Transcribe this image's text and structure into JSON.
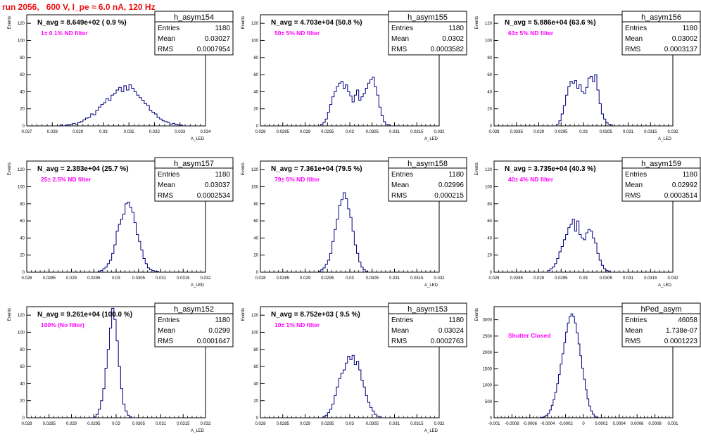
{
  "run_title": "run 2056,   600 V, I_pe ≈ 6.0 nA, 120 Hz",
  "colors": {
    "title": "#ee1111",
    "annotation": "#ff00ff",
    "histogram": "#000080"
  },
  "chart_data": [
    {
      "type": "bar",
      "name": "h_asym154",
      "stats": {
        "entries_label": "Entries",
        "entries": "1180",
        "mean_label": "Mean",
        "mean": "0.03027",
        "rms_label": "RMS",
        "rms": "0.0007954"
      },
      "navg": "N_avg = 8.649e+02 ( 0.9 %)",
      "annotation": "1± 0.1% ND filter",
      "ylabel": "Events",
      "xlabel": "A_LED",
      "xlim": [
        0.027,
        0.034
      ],
      "ylim": [
        0,
        130
      ],
      "xticks": [
        0.027,
        0.028,
        0.029,
        0.03,
        0.031,
        0.032,
        0.033,
        0.034
      ],
      "xtick_labels": [
        "0.027",
        "0.028",
        "0.029",
        "0.03",
        "0.031",
        "0.032",
        "0.033",
        "0.034"
      ],
      "yticks": [
        0,
        20,
        40,
        60,
        80,
        100,
        120
      ],
      "ytick_labels": [
        "0",
        "20",
        "40",
        "60",
        "80",
        "100",
        "120"
      ],
      "bin_start": 0.0283,
      "bin_width": 0.0001,
      "values": [
        1,
        0,
        1,
        1,
        2,
        3,
        2,
        4,
        5,
        7,
        9,
        10,
        14,
        13,
        18,
        22,
        25,
        27,
        32,
        30,
        36,
        38,
        42,
        45,
        40,
        47,
        42,
        48,
        44,
        40,
        36,
        33,
        30,
        26,
        24,
        18,
        16,
        14,
        10,
        8,
        6,
        5,
        4,
        2,
        3,
        2,
        1,
        1
      ]
    },
    {
      "type": "bar",
      "name": "h_asym155",
      "stats": {
        "entries_label": "Entries",
        "entries": "1180",
        "mean_label": "Mean",
        "mean": "0.0302",
        "rms_label": "RMS",
        "rms": "0.0003582"
      },
      "navg": "N_avg = 4.703e+04 (50.8 %)",
      "annotation": "50± 5% ND filter",
      "ylabel": "Events",
      "xlabel": "A_LED",
      "xlim": [
        0.028,
        0.032
      ],
      "ylim": [
        0,
        130
      ],
      "xticks": [
        0.028,
        0.0285,
        0.029,
        0.0295,
        0.03,
        0.0305,
        0.031,
        0.0315,
        0.032
      ],
      "xtick_labels": [
        "0.028",
        "0.0285",
        "0.029",
        "0.0295",
        "0.03",
        "0.0305",
        "0.031",
        "0.0315",
        "0.032"
      ],
      "yticks": [
        0,
        20,
        40,
        60,
        80,
        100,
        120
      ],
      "ytick_labels": [
        "0",
        "20",
        "40",
        "60",
        "80",
        "100",
        "120"
      ],
      "bin_start": 0.02935,
      "bin_width": 5e-05,
      "values": [
        2,
        4,
        8,
        16,
        25,
        34,
        40,
        46,
        50,
        52,
        44,
        48,
        40,
        35,
        28,
        36,
        42,
        30,
        34,
        38,
        44,
        50,
        54,
        57,
        46,
        36,
        22,
        12,
        5,
        2,
        1
      ]
    },
    {
      "type": "bar",
      "name": "h_asym156",
      "stats": {
        "entries_label": "Entries",
        "entries": "1180",
        "mean_label": "Mean",
        "mean": "0.03002",
        "rms_label": "RMS",
        "rms": "0.0003137"
      },
      "navg": "N_avg = 5.886e+04 (63.6 %)",
      "annotation": "63± 5% ND filter",
      "ylabel": "Events",
      "xlabel": "A_LED",
      "xlim": [
        0.028,
        0.032
      ],
      "ylim": [
        0,
        130
      ],
      "xticks": [
        0.028,
        0.0285,
        0.029,
        0.0295,
        0.03,
        0.0305,
        0.031,
        0.0315,
        0.032
      ],
      "xtick_labels": [
        "0.028",
        "0.0285",
        "0.029",
        "0.0295",
        "0.03",
        "0.0305",
        "0.031",
        "0.0315",
        "0.032"
      ],
      "yticks": [
        0,
        20,
        40,
        60,
        80,
        100,
        120
      ],
      "ytick_labels": [
        "0",
        "20",
        "40",
        "60",
        "80",
        "100",
        "120"
      ],
      "bin_start": 0.0294,
      "bin_width": 5e-05,
      "values": [
        2,
        6,
        14,
        24,
        36,
        46,
        52,
        50,
        53,
        44,
        48,
        40,
        38,
        45,
        56,
        58,
        52,
        60,
        42,
        26,
        14,
        8,
        4,
        2,
        1
      ]
    },
    {
      "type": "bar",
      "name": "h_asym157",
      "stats": {
        "entries_label": "Entries",
        "entries": "1180",
        "mean_label": "Mean",
        "mean": "0.03037",
        "rms_label": "RMS",
        "rms": "0.0002534"
      },
      "navg": "N_avg = 2.383e+04 (25.7 %)",
      "annotation": "25± 2.5% ND filter",
      "ylabel": "Events",
      "xlabel": "A_LED",
      "xlim": [
        0.028,
        0.032
      ],
      "ylim": [
        0,
        130
      ],
      "xticks": [
        0.028,
        0.0285,
        0.029,
        0.0295,
        0.03,
        0.0305,
        0.031,
        0.0315,
        0.032
      ],
      "xtick_labels": [
        "0.028",
        "0.0285",
        "0.029",
        "0.0295",
        "0.03",
        "0.0305",
        "0.031",
        "0.0315",
        "0.032"
      ],
      "yticks": [
        0,
        20,
        40,
        60,
        80,
        100,
        120
      ],
      "ytick_labels": [
        "0",
        "20",
        "40",
        "60",
        "80",
        "100",
        "120"
      ],
      "bin_start": 0.0296,
      "bin_width": 5e-05,
      "values": [
        1,
        2,
        4,
        6,
        10,
        14,
        22,
        32,
        48,
        56,
        62,
        68,
        80,
        82,
        76,
        70,
        58,
        44,
        36,
        26,
        16,
        10,
        5,
        3,
        2,
        1,
        1
      ]
    },
    {
      "type": "bar",
      "name": "h_asym158",
      "stats": {
        "entries_label": "Entries",
        "entries": "1180",
        "mean_label": "Mean",
        "mean": "0.02996",
        "rms_label": "RMS",
        "rms": "0.000215"
      },
      "navg": "N_avg = 7.361e+04 (79.5 %)",
      "annotation": "79± 5% ND filter",
      "ylabel": "Events",
      "xlabel": "A_LED",
      "xlim": [
        0.028,
        0.032
      ],
      "ylim": [
        0,
        130
      ],
      "xticks": [
        0.028,
        0.0285,
        0.029,
        0.0295,
        0.03,
        0.0305,
        0.031,
        0.0315,
        0.032
      ],
      "xtick_labels": [
        "0.028",
        "0.0285",
        "0.029",
        "0.0295",
        "0.03",
        "0.0305",
        "0.031",
        "0.0315",
        "0.032"
      ],
      "yticks": [
        0,
        20,
        40,
        60,
        80,
        100,
        120
      ],
      "ytick_labels": [
        "0",
        "20",
        "40",
        "60",
        "80",
        "100",
        "120"
      ],
      "bin_start": 0.0293,
      "bin_width": 5e-05,
      "values": [
        1,
        3,
        5,
        9,
        14,
        22,
        36,
        50,
        62,
        78,
        85,
        93,
        86,
        74,
        64,
        48,
        32,
        22,
        12,
        6,
        3,
        1
      ]
    },
    {
      "type": "bar",
      "name": "h_asym159",
      "stats": {
        "entries_label": "Entries",
        "entries": "1180",
        "mean_label": "Mean",
        "mean": "0.02992",
        "rms_label": "RMS",
        "rms": "0.0003514"
      },
      "navg": "N_avg = 3.735e+04 (40.3 %)",
      "annotation": "40± 4% ND filter",
      "ylabel": "Events",
      "xlabel": "A_LED",
      "xlim": [
        0.028,
        0.032
      ],
      "ylim": [
        0,
        130
      ],
      "xticks": [
        0.028,
        0.0285,
        0.029,
        0.0295,
        0.03,
        0.0305,
        0.031,
        0.0315,
        0.032
      ],
      "xtick_labels": [
        "0.028",
        "0.0285",
        "0.029",
        "0.0295",
        "0.03",
        "0.0305",
        "0.031",
        "0.0315",
        "0.032"
      ],
      "yticks": [
        0,
        20,
        40,
        60,
        80,
        100,
        120
      ],
      "ytick_labels": [
        "0",
        "20",
        "40",
        "60",
        "80",
        "100",
        "120"
      ],
      "bin_start": 0.0292,
      "bin_width": 5e-05,
      "values": [
        2,
        4,
        6,
        10,
        16,
        24,
        30,
        38,
        44,
        52,
        56,
        62,
        48,
        60,
        44,
        40,
        38,
        46,
        50,
        48,
        40,
        34,
        22,
        14,
        8,
        4,
        2,
        1
      ]
    },
    {
      "type": "bar",
      "name": "h_asym152",
      "stats": {
        "entries_label": "Entries",
        "entries": "1180",
        "mean_label": "Mean",
        "mean": "0.0299",
        "rms_label": "RMS",
        "rms": "0.0001647"
      },
      "navg": "N_avg = 9.261e+04 (100.0 %)",
      "annotation": "100% (No filter)",
      "ylabel": "Events",
      "xlabel": "A_LED",
      "xlim": [
        0.028,
        0.032
      ],
      "ylim": [
        0,
        130
      ],
      "xticks": [
        0.028,
        0.0285,
        0.029,
        0.0295,
        0.03,
        0.0305,
        0.031,
        0.0315,
        0.032
      ],
      "xtick_labels": [
        "0.028",
        "0.0285",
        "0.029",
        "0.0295",
        "0.03",
        "0.0305",
        "0.031",
        "0.0315",
        "0.032"
      ],
      "yticks": [
        0,
        20,
        40,
        60,
        80,
        100,
        120
      ],
      "ytick_labels": [
        "0",
        "20",
        "40",
        "60",
        "80",
        "100",
        "120"
      ],
      "bin_start": 0.0295,
      "bin_width": 5e-05,
      "values": [
        1,
        4,
        10,
        20,
        34,
        58,
        80,
        105,
        128,
        115,
        90,
        60,
        34,
        16,
        8,
        3,
        1
      ]
    },
    {
      "type": "bar",
      "name": "h_asym153",
      "stats": {
        "entries_label": "Entries",
        "entries": "1180",
        "mean_label": "Mean",
        "mean": "0.03024",
        "rms_label": "RMS",
        "rms": "0.0002763"
      },
      "navg": "N_avg = 8.752e+03 ( 9.5 %)",
      "annotation": "10± 1% ND filter",
      "ylabel": "Events",
      "xlabel": "A_LED",
      "xlim": [
        0.028,
        0.032
      ],
      "ylim": [
        0,
        130
      ],
      "xticks": [
        0.028,
        0.0285,
        0.029,
        0.0295,
        0.03,
        0.0305,
        0.031,
        0.0315,
        0.032
      ],
      "xtick_labels": [
        "0.028",
        "0.0285",
        "0.029",
        "0.0295",
        "0.03",
        "0.0305",
        "0.031",
        "0.0315",
        "0.032"
      ],
      "yticks": [
        0,
        20,
        40,
        60,
        80,
        100,
        120
      ],
      "ytick_labels": [
        "0",
        "20",
        "40",
        "60",
        "80",
        "100",
        "120"
      ],
      "bin_start": 0.0294,
      "bin_width": 5e-05,
      "values": [
        1,
        3,
        6,
        10,
        16,
        26,
        36,
        46,
        52,
        56,
        64,
        72,
        68,
        73,
        62,
        66,
        56,
        44,
        36,
        26,
        18,
        12,
        8,
        4,
        2,
        1
      ]
    },
    {
      "type": "bar",
      "name": "hPed_asym",
      "stats": {
        "entries_label": "Entries",
        "entries": "46058",
        "mean_label": "Mean",
        "mean": "1.738e-07",
        "rms_label": "RMS",
        "rms": "0.0001223"
      },
      "navg": "",
      "annotation": "Shutter Closed",
      "ylabel": "Events",
      "xlabel": "",
      "xlim": [
        -0.001,
        0.001
      ],
      "ylim": [
        0,
        3400
      ],
      "xticks": [
        -0.001,
        -0.0008,
        -0.0006,
        -0.0004,
        -0.0002,
        0,
        0.0002,
        0.0004,
        0.0006,
        0.0008,
        0.001
      ],
      "xtick_labels": [
        "-0.001",
        "-0.0008",
        "-0.0006",
        "-0.0004",
        "-0.0002",
        "0",
        "0.0002",
        "0.0004",
        "0.0006",
        "0.0008",
        "0.001"
      ],
      "yticks": [
        0,
        500,
        1000,
        1500,
        2000,
        2500,
        3000
      ],
      "ytick_labels": [
        "0",
        "500",
        "1000",
        "1500",
        "2000",
        "2500",
        "3000"
      ],
      "bin_start": -0.00048,
      "bin_width": 2e-05,
      "values": [
        10,
        20,
        40,
        80,
        140,
        240,
        380,
        560,
        780,
        1040,
        1320,
        1640,
        1960,
        2300,
        2620,
        2900,
        3100,
        3180,
        3100,
        2900,
        2600,
        2260,
        1900,
        1520,
        1180,
        860,
        580,
        360,
        210,
        110,
        50,
        20
      ]
    }
  ]
}
